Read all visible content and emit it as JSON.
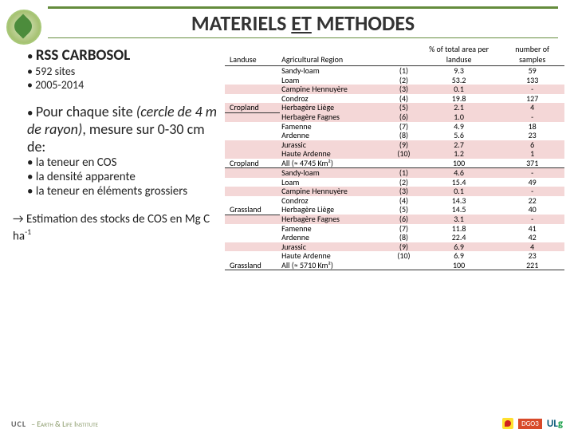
{
  "title_pre": "MATERIELS ",
  "title_u": "ET",
  "title_post": " METHODES",
  "l": {
    "h1": "RSS CARBOSOL",
    "s1": "592 sites",
    "s2": "2005-2014",
    "h2a": "Pour chaque site ",
    "h2b": "(cercle de 4 m de rayon)",
    "h2c": ", mesure sur 0-30 cm de:",
    "b1": "la teneur en COS",
    "b2": "la densité apparente",
    "b3": "la teneur en éléments grossiers",
    "est_a": "→ Estimation des stocks de COS en Mg C ha",
    "est_sup": "-1"
  },
  "th": {
    "lu": "Landuse",
    "reg": "Agricultural Region",
    "pct": "% of total area per landuse",
    "ns": "number of samples"
  },
  "rows": [
    {
      "lu": "",
      "reg": "Sandy-loam",
      "n": "(1)",
      "p": "9.3",
      "s": "59"
    },
    {
      "lu": "",
      "reg": "Loam",
      "n": "(2)",
      "p": "53.2",
      "s": "133"
    },
    {
      "lu": "",
      "reg": "Campine Hennuyère",
      "n": "(3)",
      "p": "0.1",
      "s": "-",
      "hl": 1
    },
    {
      "lu": "",
      "reg": "Condroz",
      "n": "(4)",
      "p": "19.8",
      "s": "127"
    },
    {
      "lu": "Cropland",
      "reg": "Herbagère Liège",
      "n": "(5)",
      "p": "2.1",
      "s": "4",
      "sec": 1,
      "hl": 1
    },
    {
      "lu": "",
      "reg": "Herbagère Fagnes",
      "n": "(6)",
      "p": "1.0",
      "s": "-",
      "hl": 1
    },
    {
      "lu": "",
      "reg": "Famenne",
      "n": "(7)",
      "p": "4.9",
      "s": "18"
    },
    {
      "lu": "",
      "reg": "Ardenne",
      "n": "(8)",
      "p": "5.6",
      "s": "23"
    },
    {
      "lu": "",
      "reg": "Jurassic",
      "n": "(9)",
      "p": "2.7",
      "s": "6",
      "hl": 1
    },
    {
      "lu": "",
      "reg": "Haute Ardenne",
      "n": "(10)",
      "p": "1.2",
      "s": "1",
      "hl": 1
    },
    {
      "lu": "Cropland",
      "reg": "All (≈ 4745 Km²)",
      "n": "",
      "p": "100",
      "s": "371",
      "sec": 1,
      "bot": 1
    },
    {
      "lu": "",
      "reg": "Sandy-loam",
      "n": "(1)",
      "p": "4.6",
      "s": "-",
      "hl": 1
    },
    {
      "lu": "",
      "reg": "Loam",
      "n": "(2)",
      "p": "15.4",
      "s": "49"
    },
    {
      "lu": "",
      "reg": "Campine Hennuyère",
      "n": "(3)",
      "p": "0.1",
      "s": "-",
      "hl": 1
    },
    {
      "lu": "",
      "reg": "Condroz",
      "n": "(4)",
      "p": "14.3",
      "s": "22"
    },
    {
      "lu": "Grassland",
      "reg": "Herbagère Liège",
      "n": "(5)",
      "p": "14.5",
      "s": "40",
      "sec": 1
    },
    {
      "lu": "",
      "reg": "Herbagère Fagnes",
      "n": "(6)",
      "p": "3.1",
      "s": "-",
      "hl": 1
    },
    {
      "lu": "",
      "reg": "Famenne",
      "n": "(7)",
      "p": "11.8",
      "s": "41"
    },
    {
      "lu": "",
      "reg": "Ardenne",
      "n": "(8)",
      "p": "22.4",
      "s": "42"
    },
    {
      "lu": "",
      "reg": "Jurassic",
      "n": "(9)",
      "p": "6.9",
      "s": "4",
      "hl": 1
    },
    {
      "lu": "",
      "reg": "Haute Ardenne",
      "n": "(10)",
      "p": "6.9",
      "s": "23"
    },
    {
      "lu": "Grassland",
      "reg": "All (≈ 5710 Km²)",
      "n": "",
      "p": "100",
      "s": "221",
      "sec": 1,
      "bot": 1
    }
  ],
  "f": {
    "ucl": "UCL",
    "eli": "– Earth & Life Institute",
    "dgo": "DGO3"
  }
}
